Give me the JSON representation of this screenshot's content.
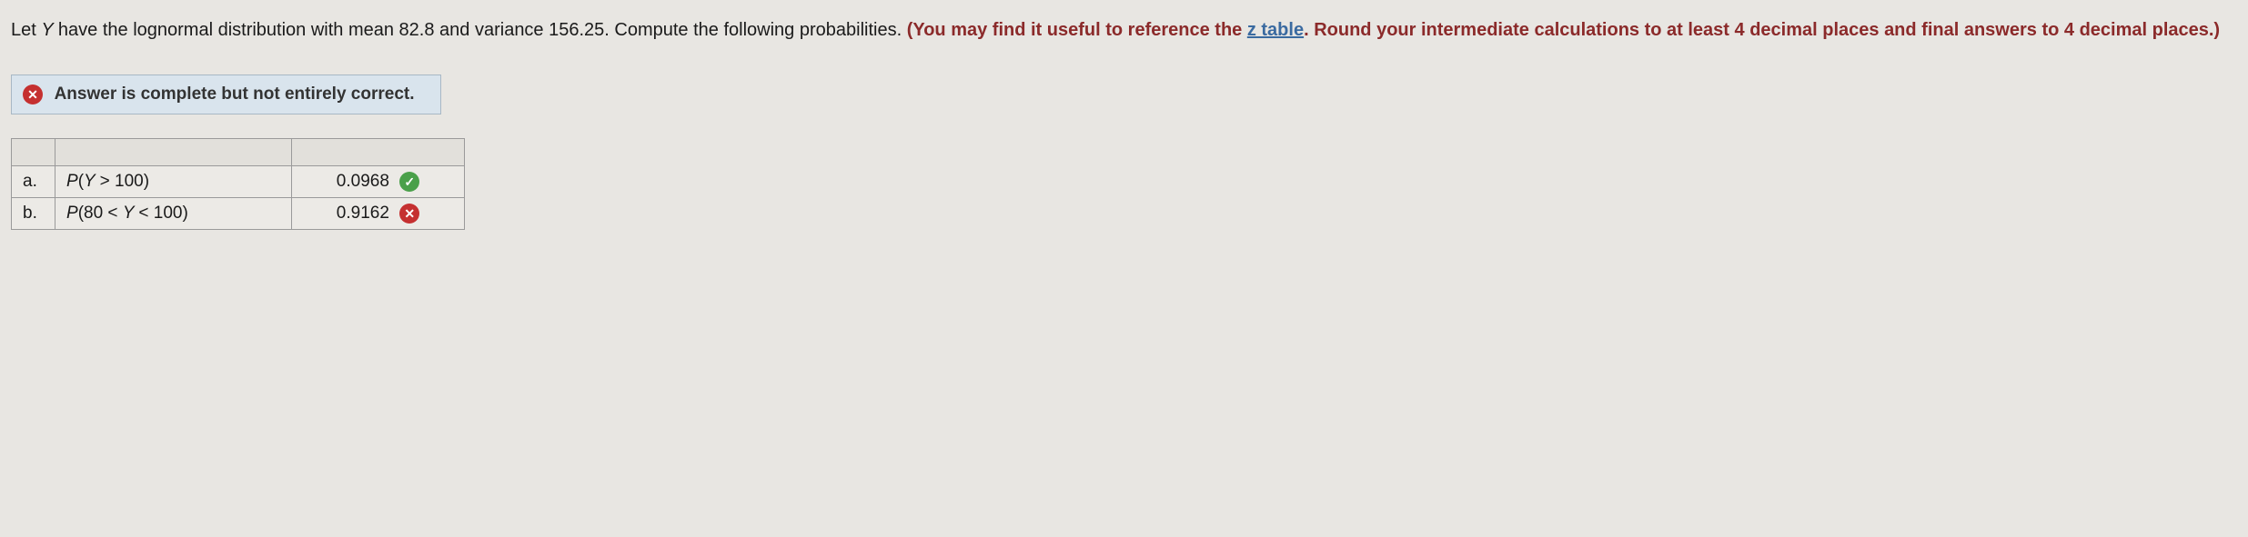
{
  "question": {
    "prefix": "Let ",
    "varY": "Y ",
    "middle": "have the lognormal distribution with mean 82.8 and variance 156.25. Compute the following probabilities. ",
    "bold_part1": "(You may find it useful to reference the ",
    "z_link_text": "z table",
    "bold_part2": ". Round your intermediate calculations to at least 4 decimal places and final answers to 4 decimal places.)"
  },
  "feedback": {
    "icon_glyph": "✕",
    "text": "Answer is complete but not entirely correct."
  },
  "table": {
    "rows": [
      {
        "label": "a.",
        "desc_prefix": "P",
        "desc_paren": "(",
        "desc_var": "Y ",
        "desc_rest": "> 100)",
        "answer": "0.0968",
        "status": "correct",
        "status_glyph": "✓"
      },
      {
        "label": "b.",
        "desc_prefix": "P",
        "desc_paren": "(80 < ",
        "desc_var": "Y ",
        "desc_rest": "< 100)",
        "answer": "0.9162",
        "status": "incorrect",
        "status_glyph": "✕"
      }
    ]
  },
  "colors": {
    "background": "#e8e6e2",
    "bold_text": "#8b2a2a",
    "link": "#3a6aa0",
    "feedback_bg": "#d9e4ed",
    "feedback_border": "#a8b8c5",
    "correct": "#4aa04a",
    "incorrect": "#c53030",
    "table_border": "#9a9a9a"
  }
}
